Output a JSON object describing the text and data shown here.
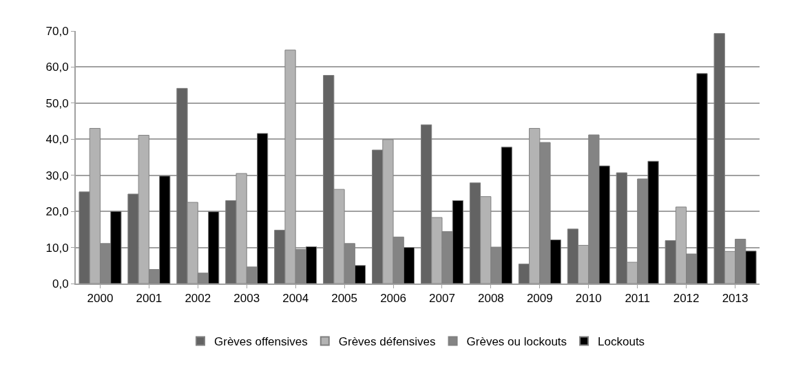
{
  "chart_data": {
    "type": "bar",
    "categories": [
      "2000",
      "2001",
      "2002",
      "2003",
      "2004",
      "2005",
      "2006",
      "2007",
      "2008",
      "2009",
      "2010",
      "2011",
      "2012",
      "2013"
    ],
    "series": [
      {
        "name": "Grèves offensives",
        "color": "#636363",
        "values": [
          25.4,
          24.8,
          54.1,
          23.0,
          14.8,
          57.7,
          37.0,
          44.0,
          27.9,
          5.4,
          15.1,
          30.7,
          11.9,
          69.3
        ]
      },
      {
        "name": "Grèves défensives",
        "color": "#b3b3b3",
        "values": [
          43.0,
          41.1,
          22.5,
          30.5,
          64.7,
          26.1,
          39.9,
          18.3,
          24.1,
          43.0,
          10.6,
          5.9,
          21.2,
          8.9
        ]
      },
      {
        "name": "Grèves ou lockouts",
        "color": "#848484",
        "values": [
          11.1,
          3.9,
          2.9,
          4.6,
          9.5,
          11.1,
          12.9,
          14.4,
          10.1,
          39.1,
          41.2,
          29.0,
          8.2,
          12.3
        ]
      },
      {
        "name": "Lockouts",
        "color": "#000000",
        "values": [
          20.0,
          29.8,
          19.9,
          41.6,
          10.2,
          5.0,
          10.0,
          23.0,
          37.8,
          12.1,
          32.6,
          33.9,
          58.2,
          9.0
        ]
      }
    ],
    "ylim": [
      0,
      70
    ],
    "yticks": [
      {
        "value": 0,
        "label": "0,0"
      },
      {
        "value": 10,
        "label": "10,0"
      },
      {
        "value": 20,
        "label": "20,0"
      },
      {
        "value": 30,
        "label": "30,0"
      },
      {
        "value": 40,
        "label": "40,0"
      },
      {
        "value": 50,
        "label": "50,0"
      },
      {
        "value": 60,
        "label": "60,0"
      },
      {
        "value": 70,
        "label": "70,0"
      }
    ],
    "grid": "y",
    "legend": "bottom"
  }
}
